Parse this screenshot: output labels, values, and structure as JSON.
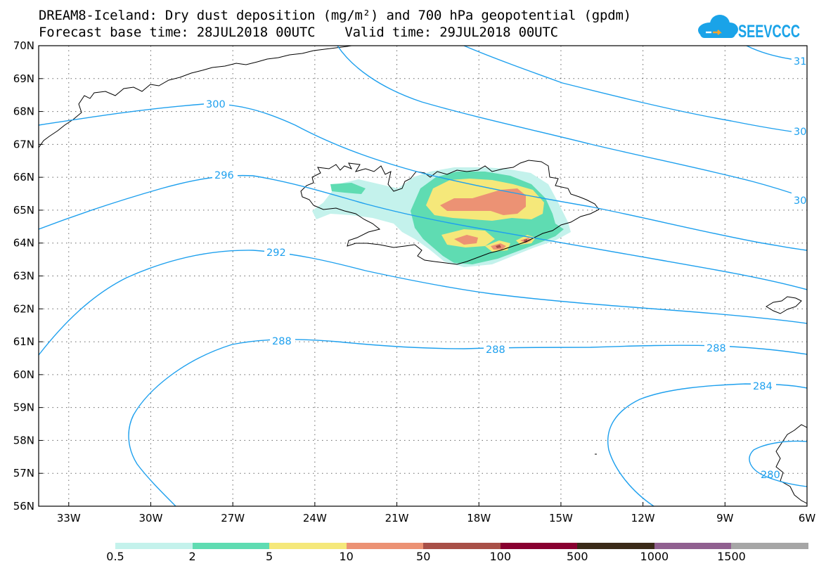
{
  "title": "DREAM8-Iceland: Dry dust deposition (mg/m²) and 700 hPa geopotential (gpdm)",
  "forecast_base": "Forecast base time: 28JUL2018 00UTC",
  "valid_time": "Valid time: 29JUL2018 00UTC",
  "logo_text": "SEEVCCC",
  "lat_labels": [
    "70N",
    "69N",
    "68N",
    "67N",
    "66N",
    "65N",
    "64N",
    "63N",
    "62N",
    "61N",
    "60N",
    "59N",
    "58N",
    "57N",
    "56N"
  ],
  "lon_labels": [
    "33W",
    "30W",
    "27W",
    "24W",
    "21W",
    "18W",
    "15W",
    "12W",
    "9W",
    "6W"
  ],
  "contour_labels": [
    "300",
    "296",
    "292",
    "288",
    "288",
    "288",
    "284",
    "280",
    "30",
    "30",
    "31"
  ],
  "legend": {
    "labels": [
      "0.5",
      "2",
      "5",
      "10",
      "50",
      "100",
      "500",
      "1000",
      "1500"
    ],
    "colors": [
      "#c4f2ec",
      "#5fdcb2",
      "#f5e87a",
      "#ec9274",
      "#a85048",
      "#880030",
      "#3a2a18",
      "#906090",
      "#a6a6a6"
    ]
  },
  "colors": {
    "contour": "#1ea0ee",
    "dust_light": "#c4f2ec",
    "dust_green": "#5fdcb2",
    "dust_yellow": "#f5e87a",
    "dust_salmon": "#ec9274",
    "dust_brown": "#a85048"
  }
}
